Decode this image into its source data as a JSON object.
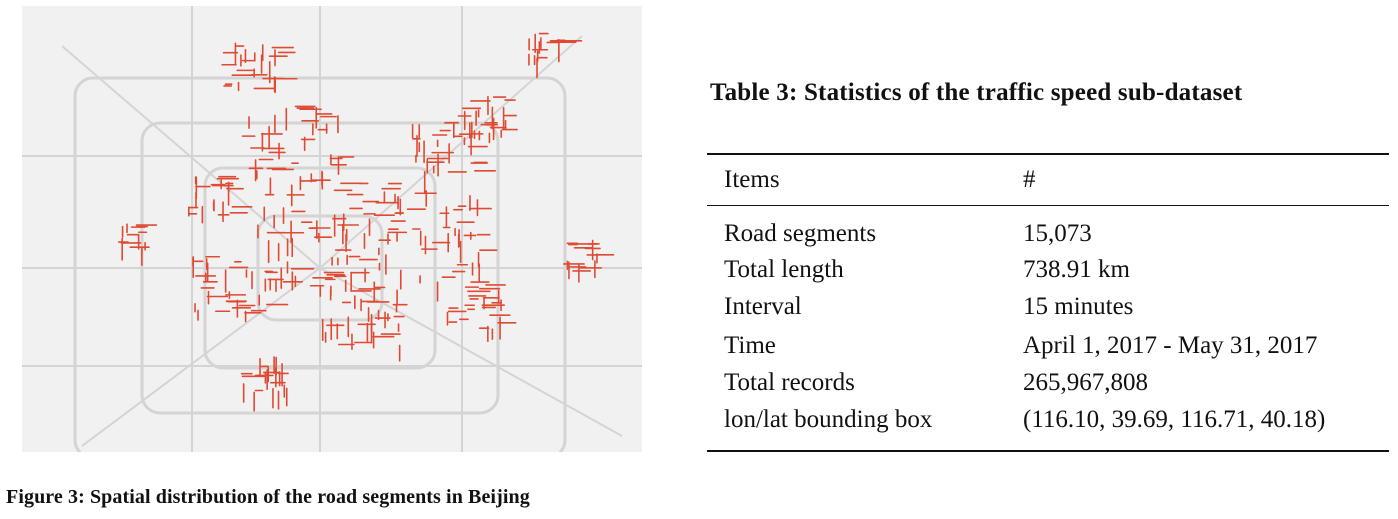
{
  "figure": {
    "caption": "Figure 3: Spatial distribution of the road segments in Beijing",
    "map": {
      "icon": "map-of-beijing-road-segments",
      "background_color": "#f1f1f1",
      "road_color": "#d4d4d4",
      "segment_color": "#e04a32"
    }
  },
  "table": {
    "caption": "Table 3: Statistics of the traffic speed sub-dataset",
    "headers": [
      "Items",
      "#"
    ],
    "rows": [
      [
        "Road segments",
        "15,073"
      ],
      [
        "Total length",
        "738.91 km"
      ],
      [
        "Interval",
        "15 minutes"
      ],
      [
        "Time",
        "April 1, 2017 - May 31, 2017"
      ],
      [
        "Total records",
        "265,967,808"
      ],
      [
        "lon/lat bounding box",
        "(116.10, 39.69, 116.71, 40.18)"
      ]
    ]
  }
}
